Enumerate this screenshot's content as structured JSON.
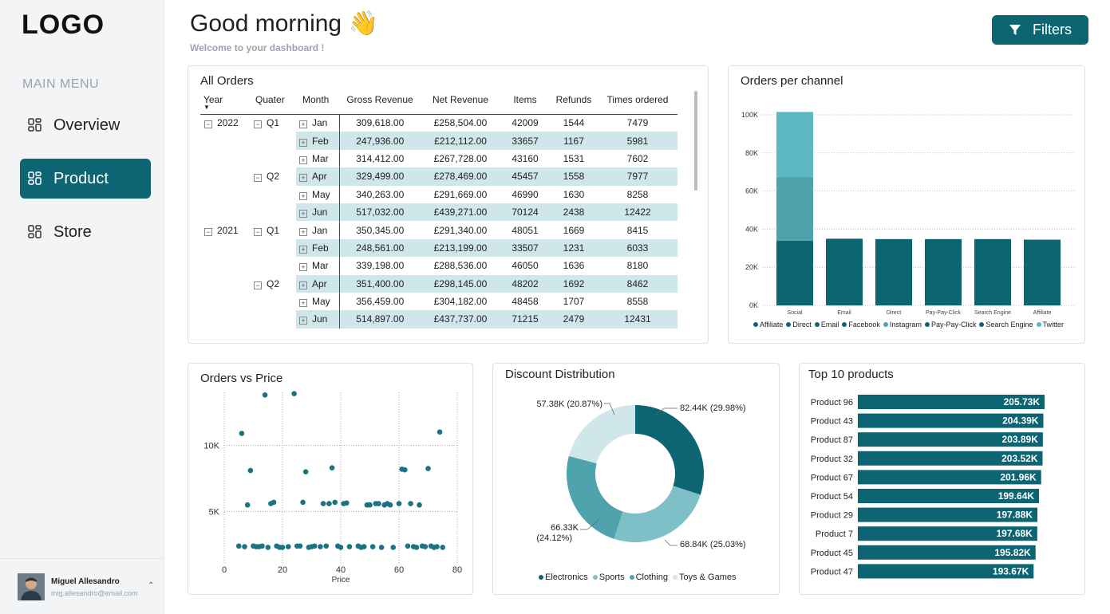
{
  "sidebar": {
    "logo": "LOGO",
    "menu_title": "MAIN MENU",
    "items": [
      {
        "label": "Overview",
        "active": false
      },
      {
        "label": "Product",
        "active": true
      },
      {
        "label": "Store",
        "active": false
      }
    ],
    "user": {
      "name": "Miguel Allesandro",
      "email": "mig.allesandro@email.com"
    }
  },
  "header": {
    "greeting": "Good morning",
    "greeting_emoji": "👋",
    "subtitle": "Welcome to your dashboard !",
    "filters_label": "Filters"
  },
  "colors": {
    "accent": "#0d6573",
    "highlight": "#cfe6ea"
  },
  "orders_table": {
    "title": "All Orders",
    "columns": [
      "Year",
      "Quater",
      "Month",
      "Gross Revenue",
      "Net Revenue",
      "Items",
      "Refunds",
      "Times ordered"
    ],
    "rows": [
      {
        "year": "2022",
        "quarter": "Q1",
        "month": "Jan",
        "gross": "309,618.00",
        "net": "£258,504.00",
        "items": "42009",
        "refunds": "1544",
        "times": "7479"
      },
      {
        "year": "",
        "quarter": "",
        "month": "Feb",
        "gross": "247,936.00",
        "net": "£212,112.00",
        "items": "33657",
        "refunds": "1167",
        "times": "5981"
      },
      {
        "year": "",
        "quarter": "",
        "month": "Mar",
        "gross": "314,412.00",
        "net": "£267,728.00",
        "items": "43160",
        "refunds": "1531",
        "times": "7602"
      },
      {
        "year": "",
        "quarter": "Q2",
        "month": "Apr",
        "gross": "329,499.00",
        "net": "£278,469.00",
        "items": "45457",
        "refunds": "1558",
        "times": "7977"
      },
      {
        "year": "",
        "quarter": "",
        "month": "May",
        "gross": "340,263.00",
        "net": "£291,669.00",
        "items": "46990",
        "refunds": "1630",
        "times": "8258"
      },
      {
        "year": "",
        "quarter": "",
        "month": "Jun",
        "gross": "517,032.00",
        "net": "£439,271.00",
        "items": "70124",
        "refunds": "2438",
        "times": "12422"
      },
      {
        "year": "2021",
        "quarter": "Q1",
        "month": "Jan",
        "gross": "350,345.00",
        "net": "£291,340.00",
        "items": "48051",
        "refunds": "1669",
        "times": "8415"
      },
      {
        "year": "",
        "quarter": "",
        "month": "Feb",
        "gross": "248,561.00",
        "net": "£213,199.00",
        "items": "33507",
        "refunds": "1231",
        "times": "6033"
      },
      {
        "year": "",
        "quarter": "",
        "month": "Mar",
        "gross": "339,198.00",
        "net": "£288,536.00",
        "items": "46050",
        "refunds": "1636",
        "times": "8180"
      },
      {
        "year": "",
        "quarter": "Q2",
        "month": "Apr",
        "gross": "351,400.00",
        "net": "£298,145.00",
        "items": "48202",
        "refunds": "1692",
        "times": "8462"
      },
      {
        "year": "",
        "quarter": "",
        "month": "May",
        "gross": "356,459.00",
        "net": "£304,182.00",
        "items": "48458",
        "refunds": "1707",
        "times": "8558"
      },
      {
        "year": "",
        "quarter": "",
        "month": "Jun",
        "gross": "514,897.00",
        "net": "£437,737.00",
        "items": "71215",
        "refunds": "2479",
        "times": "12431"
      }
    ]
  },
  "chart_data": [
    {
      "type": "bar",
      "title": "Orders per channel",
      "stacked": true,
      "categories": [
        "Social",
        "Email",
        "Direct",
        "Pay-Pay-Click",
        "Search Engine",
        "Affiliate"
      ],
      "series": [
        {
          "name": "Affiliate",
          "color": "#0d6573",
          "values": [
            0,
            0,
            0,
            0,
            0,
            34500
          ]
        },
        {
          "name": "Direct",
          "color": "#0d6573",
          "values": [
            0,
            0,
            34800,
            0,
            0,
            0
          ]
        },
        {
          "name": "Email",
          "color": "#0d6573",
          "values": [
            0,
            35000,
            0,
            0,
            0,
            0
          ]
        },
        {
          "name": "Facebook",
          "color": "#0d6573",
          "values": [
            34000,
            0,
            0,
            0,
            0,
            0
          ]
        },
        {
          "name": "Instagram",
          "color": "#4fa3ad",
          "values": [
            33500,
            0,
            0,
            0,
            0,
            0
          ]
        },
        {
          "name": "Pay-Pay-Click",
          "color": "#0d6573",
          "values": [
            0,
            0,
            0,
            34800,
            0,
            0
          ]
        },
        {
          "name": "Search Engine",
          "color": "#0d6573",
          "values": [
            0,
            0,
            0,
            0,
            34800,
            0
          ]
        },
        {
          "name": "Twitter",
          "color": "#5bb8c4",
          "values": [
            34000,
            0,
            0,
            0,
            0,
            0
          ]
        }
      ],
      "yticks": [
        "0K",
        "20K",
        "40K",
        "60K",
        "80K",
        "100K"
      ],
      "ylim": [
        0,
        100000
      ],
      "grid": true,
      "legend_position": "bottom"
    },
    {
      "type": "scatter",
      "title": "Orders vs Price",
      "xlabel": "Price",
      "xticks": [
        "0",
        "20",
        "40",
        "60",
        "80"
      ],
      "yticks": [
        "5K",
        "10K"
      ],
      "xlim": [
        0,
        80
      ],
      "ylim": [
        1000,
        14000
      ],
      "grid": true,
      "points": [
        [
          5,
          2400
        ],
        [
          6,
          10900
        ],
        [
          7,
          2350
        ],
        [
          8,
          5500
        ],
        [
          9,
          8100
        ],
        [
          10,
          2400
        ],
        [
          11,
          2350
        ],
        [
          12,
          2350
        ],
        [
          13,
          2400
        ],
        [
          14,
          13800
        ],
        [
          15,
          2300
        ],
        [
          16,
          5600
        ],
        [
          17,
          5700
        ],
        [
          18,
          2400
        ],
        [
          19,
          2300
        ],
        [
          20,
          2300
        ],
        [
          22,
          2350
        ],
        [
          24,
          13900
        ],
        [
          25,
          2400
        ],
        [
          26,
          2400
        ],
        [
          27,
          5700
        ],
        [
          28,
          8000
        ],
        [
          29,
          2300
        ],
        [
          30,
          2350
        ],
        [
          31,
          2400
        ],
        [
          33,
          2350
        ],
        [
          34,
          5600
        ],
        [
          35,
          2400
        ],
        [
          36,
          5600
        ],
        [
          37,
          8300
        ],
        [
          38,
          5700
        ],
        [
          39,
          2400
        ],
        [
          40,
          2300
        ],
        [
          41,
          5600
        ],
        [
          42,
          5650
        ],
        [
          43,
          2350
        ],
        [
          46,
          2400
        ],
        [
          47,
          2300
        ],
        [
          48,
          2350
        ],
        [
          49,
          5500
        ],
        [
          50,
          5500
        ],
        [
          51,
          2350
        ],
        [
          52,
          5600
        ],
        [
          53,
          5600
        ],
        [
          54,
          2300
        ],
        [
          55,
          5500
        ],
        [
          56,
          5600
        ],
        [
          57,
          5500
        ],
        [
          58,
          2300
        ],
        [
          60,
          5600
        ],
        [
          61,
          8200
        ],
        [
          62,
          8150
        ],
        [
          63,
          2400
        ],
        [
          64,
          5600
        ],
        [
          65,
          2350
        ],
        [
          66,
          2300
        ],
        [
          67,
          5500
        ],
        [
          68,
          2400
        ],
        [
          69,
          2350
        ],
        [
          70,
          8250
        ],
        [
          71,
          2400
        ],
        [
          72,
          2300
        ],
        [
          73,
          2350
        ],
        [
          74,
          11000
        ],
        [
          75,
          2300
        ]
      ]
    },
    {
      "type": "pie",
      "title": "Discount Distribution",
      "donut": true,
      "categories": [
        "Electronics",
        "Sports",
        "Clothing",
        "Toys & Games"
      ],
      "values": [
        82.44,
        68.84,
        66.33,
        57.38
      ],
      "labels": [
        "82.44K (29.98%)",
        "68.84K (25.03%)",
        "66.33K (24.12%)",
        "57.38K (20.87%)"
      ],
      "label_line2": [
        "",
        "",
        "(24.12%)",
        ""
      ],
      "colors": [
        "#0d6573",
        "#7fbfc8",
        "#4fa3ad",
        "#cfe6ea"
      ],
      "legend_position": "bottom"
    },
    {
      "type": "bar",
      "orientation": "horizontal",
      "title": "Top 10 products",
      "categories": [
        "Product 96",
        "Product 43",
        "Product 87",
        "Product 32",
        "Product 67",
        "Product 54",
        "Product 29",
        "Product 7",
        "Product 45",
        "Product 47"
      ],
      "values": [
        205.73,
        204.39,
        203.89,
        203.52,
        201.96,
        199.64,
        197.88,
        197.68,
        195.82,
        193.67
      ],
      "value_labels": [
        "205.73K",
        "204.39K",
        "203.89K",
        "203.52K",
        "201.96K",
        "199.64K",
        "197.88K",
        "197.68K",
        "195.82K",
        "193.67K"
      ],
      "color": "#0d6573"
    }
  ]
}
